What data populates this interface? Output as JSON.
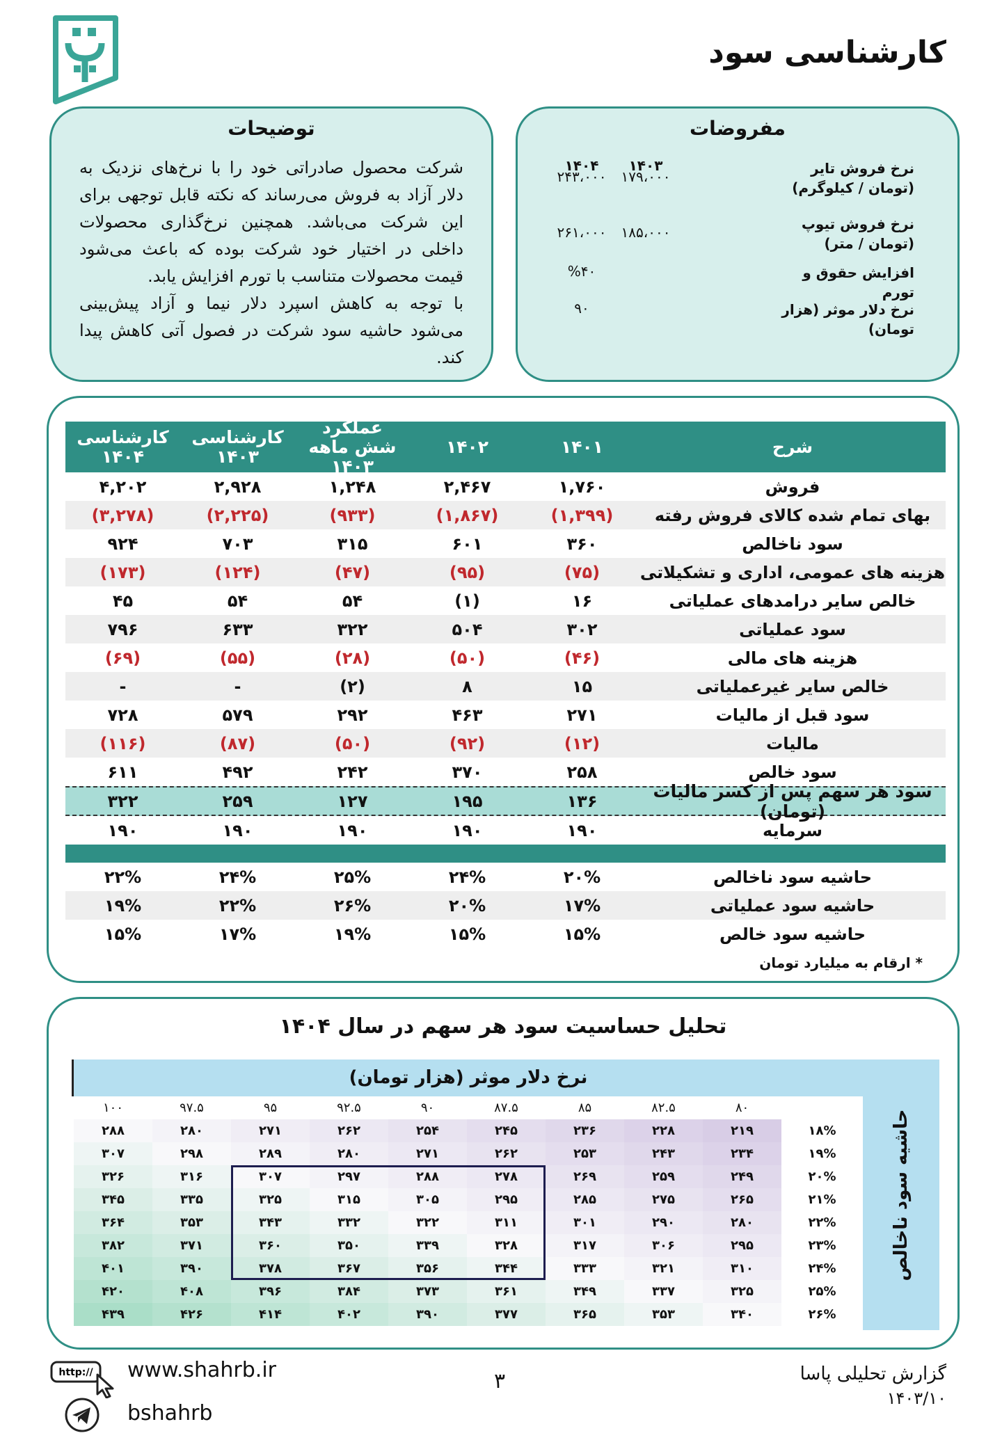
{
  "header": {
    "title": "کارشناسی سود"
  },
  "notes": {
    "title": "توضیحات",
    "paragraphs": [
      "شرکت محصول صادراتی خود را با نرخ‌های نزدیک به دلار آزاد به فروش می‌رساند که نکته قابل توجهی برای این شرکت می‌باشد. همچنین نرخ‌گذاری محصولات داخلی در اختیار خود شرکت بوده که باعث می‌شود قیمت محصولات متناسب با تورم افزایش یابد.",
      "با توجه به کاهش اسپرد دلار نیما و آزاد پیش‌بینی می‌شود حاشیه سود شرکت در فصول آتی کاهش پیدا کند."
    ]
  },
  "assumptions": {
    "title": "مفروضات",
    "columns": [
      "۱۴۰۳",
      "۱۴۰۴"
    ],
    "rows": [
      {
        "label": "نرخ فروش تایر (تومان / کیلوگرم)",
        "values": [
          "۱۷۹،۰۰۰",
          "۲۴۳،۰۰۰"
        ]
      },
      {
        "label": "نرخ فروش تیوپ (تومان / متر)",
        "values": [
          "۱۸۵،۰۰۰",
          "۲۶۱،۰۰۰"
        ]
      },
      {
        "label": "افزایش حقوق و تورم",
        "values": [
          null,
          "%۴۰"
        ]
      },
      {
        "label": "نرخ دلار موثر (هزار تومان)",
        "values": [
          null,
          "۹۰"
        ]
      }
    ]
  },
  "financials": {
    "columns": [
      "شرح",
      "۱۴۰۱",
      "۱۴۰۲",
      "عملکرد شش ماهه ۱۴۰۳",
      "کارشناسی ۱۴۰۳",
      "کارشناسی ۱۴۰۴"
    ],
    "rows": [
      {
        "label": "فروش",
        "values": [
          "۱,۷۶۰",
          "۲,۴۶۷",
          "۱,۲۴۸",
          "۲,۹۲۸",
          "۴,۲۰۲"
        ]
      },
      {
        "label": "بهای تمام شده کالای فروش رفته",
        "values": [
          "(۱,۳۹۹)",
          "(۱,۸۶۷)",
          "(۹۳۳)",
          "(۲,۲۲۵)",
          "(۳,۲۷۸)"
        ],
        "color": "#c0282d"
      },
      {
        "label": "سود ناخالص",
        "values": [
          "۳۶۰",
          "۶۰۱",
          "۳۱۵",
          "۷۰۳",
          "۹۲۴"
        ]
      },
      {
        "label": "هزینه های عمومی، اداری و تشکیلاتی",
        "values": [
          "(۷۵)",
          "(۹۵)",
          "(۴۷)",
          "(۱۲۴)",
          "(۱۷۳)"
        ],
        "color": "#c0282d"
      },
      {
        "label": "خالص سایر درامدهای عملیاتی",
        "values": [
          "۱۶",
          "(۱)",
          "۵۴",
          "۵۴",
          "۴۵"
        ]
      },
      {
        "label": "سود عملیاتی",
        "values": [
          "۳۰۲",
          "۵۰۴",
          "۳۲۲",
          "۶۳۳",
          "۷۹۶"
        ]
      },
      {
        "label": "هزینه های مالی",
        "values": [
          "(۴۶)",
          "(۵۰)",
          "(۲۸)",
          "(۵۵)",
          "(۶۹)"
        ],
        "color": "#c0282d"
      },
      {
        "label": "خالص سایر غیرعملیاتی",
        "values": [
          "۱۵",
          "۸",
          "(۲)",
          "-",
          "-"
        ]
      },
      {
        "label": "سود قبل از مالیات",
        "values": [
          "۲۷۱",
          "۴۶۳",
          "۲۹۲",
          "۵۷۹",
          "۷۲۸"
        ]
      },
      {
        "label": "مالیات",
        "values": [
          "(۱۲)",
          "(۹۲)",
          "(۵۰)",
          "(۸۷)",
          "(۱۱۶)"
        ],
        "color": "#c0282d"
      },
      {
        "label": "سود خالص",
        "values": [
          "۲۵۸",
          "۳۷۰",
          "۲۴۲",
          "۴۹۲",
          "۶۱۱"
        ]
      }
    ],
    "eps": {
      "label": "سود هر سهم پس از کسر مالیات (تومان)",
      "values": [
        "۱۳۶",
        "۱۹۵",
        "۱۲۷",
        "۲۵۹",
        "۳۲۲"
      ]
    },
    "capital": {
      "label": "سرمایه",
      "values": [
        "۱۹۰",
        "۱۹۰",
        "۱۹۰",
        "۱۹۰",
        "۱۹۰"
      ]
    },
    "margins": [
      {
        "label": "حاشیه سود ناخالص",
        "values": [
          "۲۰%",
          "۲۴%",
          "۲۵%",
          "۲۴%",
          "۲۲%"
        ]
      },
      {
        "label": "حاشیه سود عملیاتی",
        "values": [
          "۱۷%",
          "۲۰%",
          "۲۶%",
          "۲۲%",
          "۱۹%"
        ]
      },
      {
        "label": "حاشیه سود خالص",
        "values": [
          "۱۵%",
          "۱۵%",
          "۱۹%",
          "۱۷%",
          "۱۵%"
        ]
      }
    ],
    "note": "* ارقام به میلیارد تومان"
  },
  "sensitivity": {
    "title": "تحلیل حساسیت سود هر سهم در سال ۱۴۰۴",
    "column_title": "نرخ دلار موثر (هزار تومان)",
    "row_title": "حاشیه سود ناخالص",
    "columns": [
      "۸۰",
      "۸۲.۵",
      "۸۵",
      "۸۷.۵",
      "۹۰",
      "۹۲.۵",
      "۹۵",
      "۹۷.۵",
      "۱۰۰"
    ],
    "rows": [
      "۱۸%",
      "۱۹%",
      "۲۰%",
      "۲۱%",
      "۲۲%",
      "۲۳%",
      "۲۴%",
      "۲۵%",
      "۲۶%"
    ],
    "cells": [
      [
        "۲۱۹",
        "۲۲۸",
        "۲۳۶",
        "۲۴۵",
        "۲۵۴",
        "۲۶۲",
        "۲۷۱",
        "۲۸۰",
        "۲۸۸"
      ],
      [
        "۲۳۴",
        "۲۴۳",
        "۲۵۳",
        "۲۶۲",
        "۲۷۱",
        "۲۸۰",
        "۲۸۹",
        "۲۹۸",
        "۳۰۷"
      ],
      [
        "۲۴۹",
        "۲۵۹",
        "۲۶۹",
        "۲۷۸",
        "۲۸۸",
        "۲۹۷",
        "۳۰۷",
        "۳۱۶",
        "۳۲۶"
      ],
      [
        "۲۶۵",
        "۲۷۵",
        "۲۸۵",
        "۲۹۵",
        "۳۰۵",
        "۳۱۵",
        "۳۲۵",
        "۳۳۵",
        "۳۴۵"
      ],
      [
        "۲۸۰",
        "۲۹۰",
        "۳۰۱",
        "۳۱۱",
        "۳۲۲",
        "۳۳۲",
        "۳۴۳",
        "۳۵۳",
        "۳۶۴"
      ],
      [
        "۲۹۵",
        "۳۰۶",
        "۳۱۷",
        "۳۲۸",
        "۳۳۹",
        "۳۵۰",
        "۳۶۰",
        "۳۷۱",
        "۳۸۲"
      ],
      [
        "۳۱۰",
        "۳۲۱",
        "۳۳۳",
        "۳۴۴",
        "۳۵۶",
        "۳۶۷",
        "۳۷۸",
        "۳۹۰",
        "۴۰۱"
      ],
      [
        "۳۲۵",
        "۳۳۷",
        "۳۴۹",
        "۳۶۱",
        "۳۷۳",
        "۳۸۴",
        "۳۹۶",
        "۴۰۸",
        "۴۲۰"
      ],
      [
        "۳۴۰",
        "۳۵۳",
        "۳۶۵",
        "۳۷۷",
        "۳۹۰",
        "۴۰۲",
        "۴۱۴",
        "۴۲۶",
        "۴۳۹"
      ]
    ]
  },
  "footer": {
    "icon_text": "http://",
    "website": "www.shahrb.ir",
    "telegram": "bshahrb",
    "page_number": "۳",
    "report": "گزارش تحلیلی پاسا",
    "date": "۱۴۰۳/۱۰"
  }
}
